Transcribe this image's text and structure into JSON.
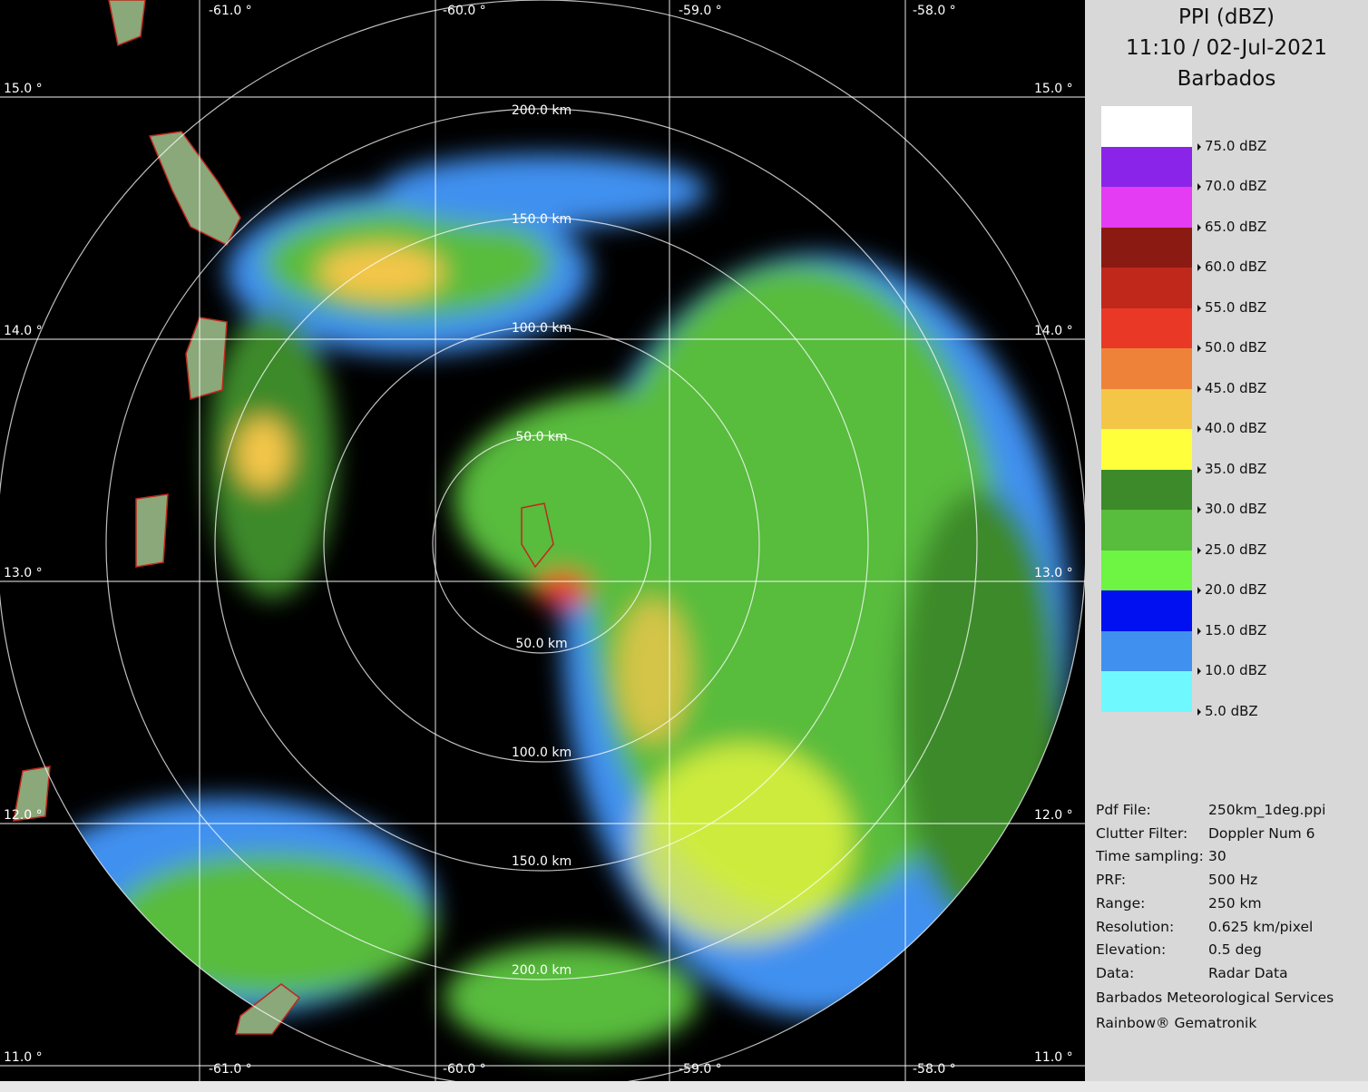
{
  "header": {
    "title": "PPI (dBZ)",
    "time": "11:10 / 02-Jul-2021",
    "site": "Barbados"
  },
  "legend": {
    "colors": [
      "#ffffff",
      "#8a24e8",
      "#e43cf2",
      "#8a1a12",
      "#c0281c",
      "#ea3826",
      "#ee8238",
      "#f4c648",
      "#ffff3c",
      "#3c8a2a",
      "#58bc3c",
      "#6ef442",
      "#0010f0",
      "#4090f0",
      "#70f8ff"
    ],
    "labels": [
      "75.0 dBZ",
      "70.0 dBZ",
      "65.0 dBZ",
      "60.0 dBZ",
      "55.0 dBZ",
      "50.0 dBZ",
      "45.0 dBZ",
      "40.0 dBZ",
      "35.0 dBZ",
      "30.0 dBZ",
      "25.0 dBZ",
      "20.0 dBZ",
      "15.0 dBZ",
      "10.0 dBZ",
      "5.0 dBZ"
    ]
  },
  "info": [
    {
      "key": "Pdf File:",
      "value": "250km_1deg.ppi"
    },
    {
      "key": "Clutter Filter:",
      "value": "Doppler Num 6"
    },
    {
      "key": "Time sampling:",
      "value": "30"
    },
    {
      "key": "PRF:",
      "value": "500 Hz"
    },
    {
      "key": "Range:",
      "value": "250 km"
    },
    {
      "key": "Resolution:",
      "value": "0.625 km/pixel"
    },
    {
      "key": "Elevation:",
      "value": "0.5 deg"
    },
    {
      "key": "Data:",
      "value": "Radar Data"
    }
  ],
  "credits": [
    "Barbados Meteorological Services",
    "Rainbow® Gematronik"
  ],
  "map": {
    "lon_labels": [
      "-61.0 °",
      "-60.0 °",
      "-59.0 °",
      "-58.0 °"
    ],
    "lat_labels": [
      "15.0 °",
      "14.0 °",
      "13.0 °",
      "12.0 °",
      "11.0 °"
    ],
    "range_labels": [
      "50.0 km",
      "100.0 km",
      "150.0 km",
      "200.0 km"
    ]
  }
}
